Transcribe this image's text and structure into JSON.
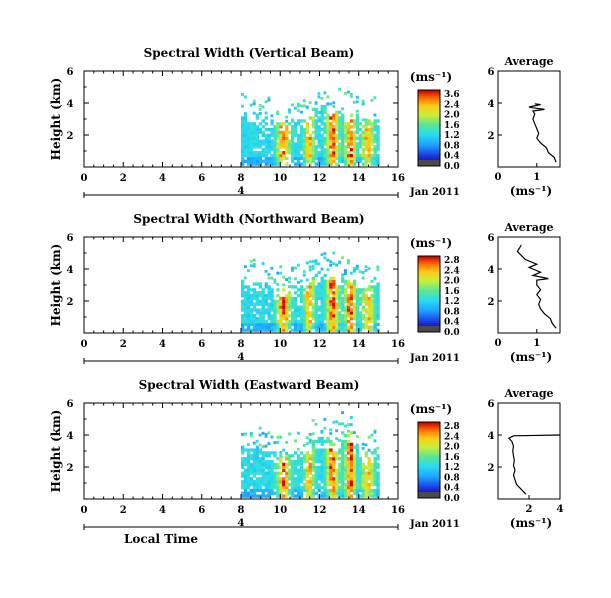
{
  "chart_data": [
    {
      "type": "heatmap",
      "title": "Spectral Width (Vertical Beam)",
      "ylabel": "Height (km)",
      "xticks": [
        "0",
        "2",
        "4",
        "6",
        "8",
        "10",
        "12",
        "14",
        "16"
      ],
      "yticks": [
        "2",
        "4",
        "6"
      ],
      "xlim": [
        0,
        16
      ],
      "ylim": [
        0,
        6
      ],
      "date_label": "4",
      "date_suffix": "Jan 2011",
      "colorbar": {
        "unit": "(ms⁻¹)",
        "ticks": [
          "3.6",
          "2.4",
          "2.0",
          "1.6",
          "1.2",
          "0.8",
          "0.4",
          "0.0"
        ],
        "max": 3.6
      },
      "average": {
        "title": "Average",
        "xlabel": "(ms⁻¹)",
        "xticks": [
          "0",
          "1"
        ],
        "yticks": [
          "2",
          "4",
          "6"
        ],
        "xlim": [
          0,
          1.6
        ],
        "ylim": [
          0,
          6
        ],
        "profile": [
          [
            1.5,
            0.3
          ],
          [
            1.45,
            0.6
          ],
          [
            1.3,
            0.9
          ],
          [
            1.25,
            1.2
          ],
          [
            1.1,
            1.5
          ],
          [
            1.0,
            1.8
          ],
          [
            1.05,
            2.1
          ],
          [
            1.0,
            2.4
          ],
          [
            0.95,
            2.7
          ],
          [
            0.9,
            3.0
          ],
          [
            0.95,
            3.3
          ],
          [
            0.9,
            3.5
          ],
          [
            1.2,
            3.6
          ],
          [
            0.9,
            3.7
          ],
          [
            0.8,
            3.75
          ],
          [
            1.0,
            3.85
          ],
          [
            1.1,
            3.9
          ],
          [
            0.95,
            3.95
          ]
        ]
      }
    },
    {
      "type": "heatmap",
      "title": "Spectral Width (Northward Beam)",
      "ylabel": "Height (km)",
      "xticks": [
        "0",
        "2",
        "4",
        "6",
        "8",
        "10",
        "12",
        "14",
        "16"
      ],
      "yticks": [
        "2",
        "4",
        "6"
      ],
      "xlim": [
        0,
        16
      ],
      "ylim": [
        0,
        6
      ],
      "date_label": "4",
      "date_suffix": "Jan 2011",
      "colorbar": {
        "unit": "(ms⁻¹)",
        "ticks": [
          "2.8",
          "2.4",
          "2.0",
          "1.6",
          "1.2",
          "0.8",
          "0.4",
          "0.0"
        ],
        "max": 2.8
      },
      "average": {
        "title": "Average",
        "xlabel": "(ms⁻¹)",
        "xticks": [
          "0",
          "1"
        ],
        "yticks": [
          "2",
          "4",
          "6"
        ],
        "xlim": [
          0,
          1.6
        ],
        "ylim": [
          0,
          6
        ],
        "profile": [
          [
            1.5,
            0.3
          ],
          [
            1.4,
            0.6
          ],
          [
            1.35,
            0.9
          ],
          [
            1.2,
            1.2
          ],
          [
            1.1,
            1.5
          ],
          [
            1.05,
            1.8
          ],
          [
            1.1,
            2.1
          ],
          [
            1.0,
            2.4
          ],
          [
            1.1,
            2.7
          ],
          [
            1.0,
            3.0
          ],
          [
            1.0,
            3.3
          ],
          [
            1.3,
            3.4
          ],
          [
            0.9,
            3.6
          ],
          [
            1.1,
            3.8
          ],
          [
            0.9,
            4.0
          ],
          [
            0.8,
            4.1
          ],
          [
            1.0,
            4.3
          ],
          [
            0.7,
            4.6
          ],
          [
            0.5,
            5.1
          ],
          [
            0.6,
            5.5
          ]
        ]
      }
    },
    {
      "type": "heatmap",
      "title": "Spectral Width (Eastward Beam)",
      "ylabel": "Height (km)",
      "xlabel": "Local Time",
      "xticks": [
        "0",
        "2",
        "4",
        "6",
        "8",
        "10",
        "12",
        "14",
        "16"
      ],
      "yticks": [
        "2",
        "4",
        "6"
      ],
      "xlim": [
        0,
        16
      ],
      "ylim": [
        0,
        6
      ],
      "date_label": "4",
      "date_suffix": "Jan 2011",
      "colorbar": {
        "unit": "(ms⁻¹)",
        "ticks": [
          "2.8",
          "2.4",
          "2.0",
          "1.6",
          "1.2",
          "0.8",
          "0.4",
          "0.0"
        ],
        "max": 2.8
      },
      "average": {
        "title": "Average",
        "xlabel": "(ms⁻¹)",
        "xticks": [
          "2",
          "4"
        ],
        "yticks": [
          "2",
          "4",
          "6"
        ],
        "xlim": [
          0,
          4
        ],
        "ylim": [
          0,
          6
        ],
        "profile": [
          [
            1.8,
            0.3
          ],
          [
            1.5,
            0.6
          ],
          [
            1.2,
            0.9
          ],
          [
            1.1,
            1.2
          ],
          [
            1.0,
            1.5
          ],
          [
            1.1,
            1.8
          ],
          [
            1.0,
            2.1
          ],
          [
            1.05,
            2.4
          ],
          [
            1.0,
            2.7
          ],
          [
            0.95,
            3.0
          ],
          [
            1.0,
            3.3
          ],
          [
            0.9,
            3.6
          ],
          [
            0.7,
            3.8
          ],
          [
            1.0,
            3.95
          ],
          [
            4.0,
            4.0
          ]
        ]
      }
    }
  ]
}
